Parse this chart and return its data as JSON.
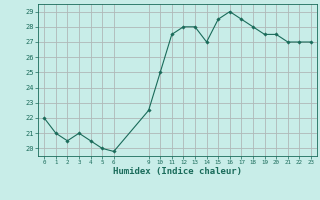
{
  "x": [
    0,
    1,
    2,
    3,
    4,
    5,
    6,
    9,
    10,
    11,
    12,
    13,
    14,
    15,
    16,
    17,
    18,
    19,
    20,
    21,
    22,
    23
  ],
  "y": [
    22.0,
    21.0,
    20.5,
    21.0,
    20.5,
    20.0,
    19.8,
    22.5,
    25.0,
    27.5,
    28.0,
    28.0,
    27.0,
    28.5,
    29.0,
    28.5,
    28.0,
    27.5,
    27.5,
    27.0,
    27.0,
    27.0
  ],
  "xticks": [
    0,
    1,
    2,
    3,
    4,
    5,
    6,
    9,
    10,
    11,
    12,
    13,
    14,
    15,
    16,
    17,
    18,
    19,
    20,
    21,
    22,
    23
  ],
  "yticks": [
    20,
    21,
    22,
    23,
    24,
    25,
    26,
    27,
    28,
    29
  ],
  "ylim": [
    19.5,
    29.5
  ],
  "xlim": [
    -0.5,
    23.5
  ],
  "xlabel": "Humidex (Indice chaleur)",
  "line_color": "#1a6b5a",
  "marker": "D",
  "marker_size": 1.8,
  "background_color": "#c8ede8",
  "grid_color": "#b0b8b8",
  "tick_color": "#1a6b5a",
  "label_color": "#1a6b5a",
  "title": ""
}
